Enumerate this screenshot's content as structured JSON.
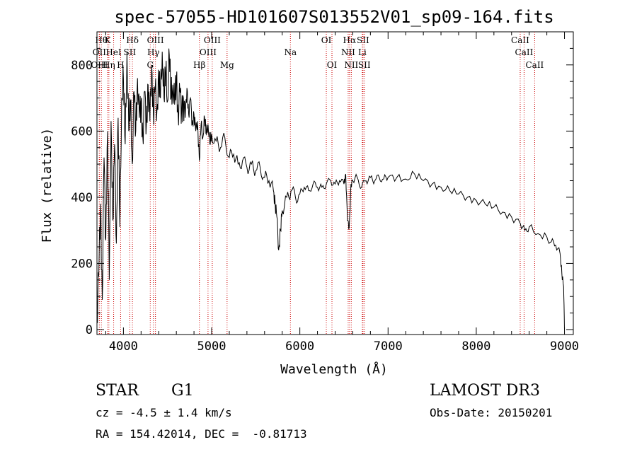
{
  "chart_data": {
    "type": "line",
    "title": "spec-57055-HD101607S013552V01_sp09-164.fits",
    "xlabel": "Wavelength (Å)",
    "ylabel": "Flux (relative)",
    "xlim": [
      3700,
      9100
    ],
    "ylim": [
      -15,
      900
    ],
    "x_ticks": [
      4000,
      5000,
      6000,
      7000,
      8000,
      9000
    ],
    "y_ticks": [
      0,
      200,
      400,
      600,
      800
    ],
    "series": [
      {
        "name": "flux",
        "points": [
          [
            3700,
            40
          ],
          [
            3720,
            160
          ],
          [
            3740,
            380
          ],
          [
            3760,
            90
          ],
          [
            3780,
            520
          ],
          [
            3800,
            270
          ],
          [
            3820,
            600
          ],
          [
            3840,
            150
          ],
          [
            3860,
            630
          ],
          [
            3880,
            330
          ],
          [
            3900,
            560
          ],
          [
            3920,
            260
          ],
          [
            3940,
            640
          ],
          [
            3960,
            310
          ],
          [
            3980,
            700
          ],
          [
            4000,
            760
          ],
          [
            4020,
            560
          ],
          [
            4040,
            840
          ],
          [
            4060,
            600
          ],
          [
            4080,
            690
          ],
          [
            4100,
            500
          ],
          [
            4120,
            720
          ],
          [
            4140,
            600
          ],
          [
            4160,
            760
          ],
          [
            4180,
            640
          ],
          [
            4200,
            690
          ],
          [
            4220,
            580
          ],
          [
            4240,
            720
          ],
          [
            4260,
            620
          ],
          [
            4280,
            740
          ],
          [
            4300,
            630
          ],
          [
            4320,
            800
          ],
          [
            4340,
            650
          ],
          [
            4360,
            730
          ],
          [
            4380,
            660
          ],
          [
            4400,
            760
          ],
          [
            4420,
            700
          ],
          [
            4440,
            840
          ],
          [
            4460,
            700
          ],
          [
            4480,
            780
          ],
          [
            4500,
            690
          ],
          [
            4520,
            830
          ],
          [
            4540,
            700
          ],
          [
            4560,
            740
          ],
          [
            4580,
            680
          ],
          [
            4600,
            760
          ],
          [
            4620,
            650
          ],
          [
            4640,
            720
          ],
          [
            4660,
            660
          ],
          [
            4680,
            700
          ],
          [
            4700,
            640
          ],
          [
            4720,
            730
          ],
          [
            4740,
            650
          ],
          [
            4760,
            700
          ],
          [
            4780,
            620
          ],
          [
            4800,
            650
          ],
          [
            4820,
            600
          ],
          [
            4840,
            630
          ],
          [
            4860,
            510
          ],
          [
            4880,
            620
          ],
          [
            4900,
            580
          ],
          [
            4920,
            640
          ],
          [
            4940,
            590
          ],
          [
            4960,
            620
          ],
          [
            4980,
            560
          ],
          [
            5000,
            590
          ],
          [
            5050,
            570
          ],
          [
            5100,
            550
          ],
          [
            5150,
            580
          ],
          [
            5200,
            520
          ],
          [
            5250,
            530
          ],
          [
            5300,
            500
          ],
          [
            5350,
            510
          ],
          [
            5400,
            490
          ],
          [
            5450,
            500
          ],
          [
            5500,
            480
          ],
          [
            5550,
            490
          ],
          [
            5600,
            460
          ],
          [
            5650,
            450
          ],
          [
            5700,
            420
          ],
          [
            5720,
            380
          ],
          [
            5740,
            340
          ],
          [
            5760,
            240
          ],
          [
            5780,
            300
          ],
          [
            5800,
            360
          ],
          [
            5850,
            400
          ],
          [
            5900,
            420
          ],
          [
            5950,
            400
          ],
          [
            6000,
            410
          ],
          [
            6050,
            430
          ],
          [
            6100,
            420
          ],
          [
            6150,
            440
          ],
          [
            6200,
            430
          ],
          [
            6250,
            430
          ],
          [
            6300,
            440
          ],
          [
            6350,
            450
          ],
          [
            6400,
            440
          ],
          [
            6450,
            450
          ],
          [
            6500,
            440
          ],
          [
            6520,
            470
          ],
          [
            6540,
            330
          ],
          [
            6560,
            310
          ],
          [
            6580,
            440
          ],
          [
            6600,
            450
          ],
          [
            6650,
            460
          ],
          [
            6700,
            430
          ],
          [
            6750,
            450
          ],
          [
            6800,
            460
          ],
          [
            6850,
            450
          ],
          [
            6900,
            460
          ],
          [
            6950,
            455
          ],
          [
            7000,
            460
          ],
          [
            7100,
            460
          ],
          [
            7200,
            455
          ],
          [
            7300,
            470
          ],
          [
            7400,
            450
          ],
          [
            7500,
            440
          ],
          [
            7600,
            430
          ],
          [
            7700,
            420
          ],
          [
            7800,
            410
          ],
          [
            7900,
            400
          ],
          [
            8000,
            390
          ],
          [
            8100,
            380
          ],
          [
            8200,
            370
          ],
          [
            8300,
            355
          ],
          [
            8400,
            340
          ],
          [
            8500,
            320
          ],
          [
            8550,
            300
          ],
          [
            8600,
            310
          ],
          [
            8700,
            290
          ],
          [
            8800,
            280
          ],
          [
            8850,
            265
          ],
          [
            8900,
            255
          ],
          [
            8950,
            230
          ],
          [
            8970,
            170
          ],
          [
            8990,
            130
          ],
          [
            9000,
            0
          ]
        ]
      }
    ],
    "spectral_lines": [
      {
        "label": "Hθ",
        "x": 3750,
        "tier": 0
      },
      {
        "label": "K",
        "x": 3820,
        "tier": 0
      },
      {
        "label": "Hδ",
        "x": 4102,
        "tier": 0
      },
      {
        "label": "OIII",
        "x": 4363,
        "tier": 0
      },
      {
        "label": "OIII",
        "x": 5007,
        "tier": 0
      },
      {
        "label": "OI",
        "x": 6300,
        "tier": 0
      },
      {
        "label": "Hα",
        "x": 6563,
        "tier": 0
      },
      {
        "label": "SII",
        "x": 6716,
        "tier": 0
      },
      {
        "label": "CaII",
        "x": 8498,
        "tier": 0
      },
      {
        "label": "OII",
        "x": 3727,
        "tier": 1
      },
      {
        "label": "HeI",
        "x": 3889,
        "tier": 1
      },
      {
        "label": "SII",
        "x": 4072,
        "tier": 1
      },
      {
        "label": "Hγ",
        "x": 4340,
        "tier": 1
      },
      {
        "label": "OIII",
        "x": 4959,
        "tier": 1
      },
      {
        "label": "Na",
        "x": 5893,
        "tier": 1
      },
      {
        "label": "NII",
        "x": 6548,
        "tier": 1
      },
      {
        "label": "Li",
        "x": 6708,
        "tier": 1
      },
      {
        "label": "CaII",
        "x": 8542,
        "tier": 1
      },
      {
        "label": "OIII",
        "x": 3727,
        "tier": 2
      },
      {
        "label": "Hη",
        "x": 3835,
        "tier": 2
      },
      {
        "label": "H",
        "x": 3968,
        "tier": 2
      },
      {
        "label": "G",
        "x": 4304,
        "tier": 2
      },
      {
        "label": "Hβ",
        "x": 4861,
        "tier": 2
      },
      {
        "label": "Mg",
        "x": 5175,
        "tier": 2
      },
      {
        "label": "OI",
        "x": 6364,
        "tier": 2
      },
      {
        "label": "NII",
        "x": 6583,
        "tier": 2
      },
      {
        "label": "SII",
        "x": 6731,
        "tier": 2
      },
      {
        "label": "CaII",
        "x": 8662,
        "tier": 2
      }
    ],
    "line_color": "#cc0000"
  },
  "info": {
    "object_class": "STAR",
    "subclass": "G1",
    "survey": "LAMOST DR3",
    "cz": "cz = -4.5 ± 1.4 km/s",
    "obs_date": "Obs-Date: 20150201",
    "coords": "RA = 154.42014, DEC =  -0.81713"
  }
}
